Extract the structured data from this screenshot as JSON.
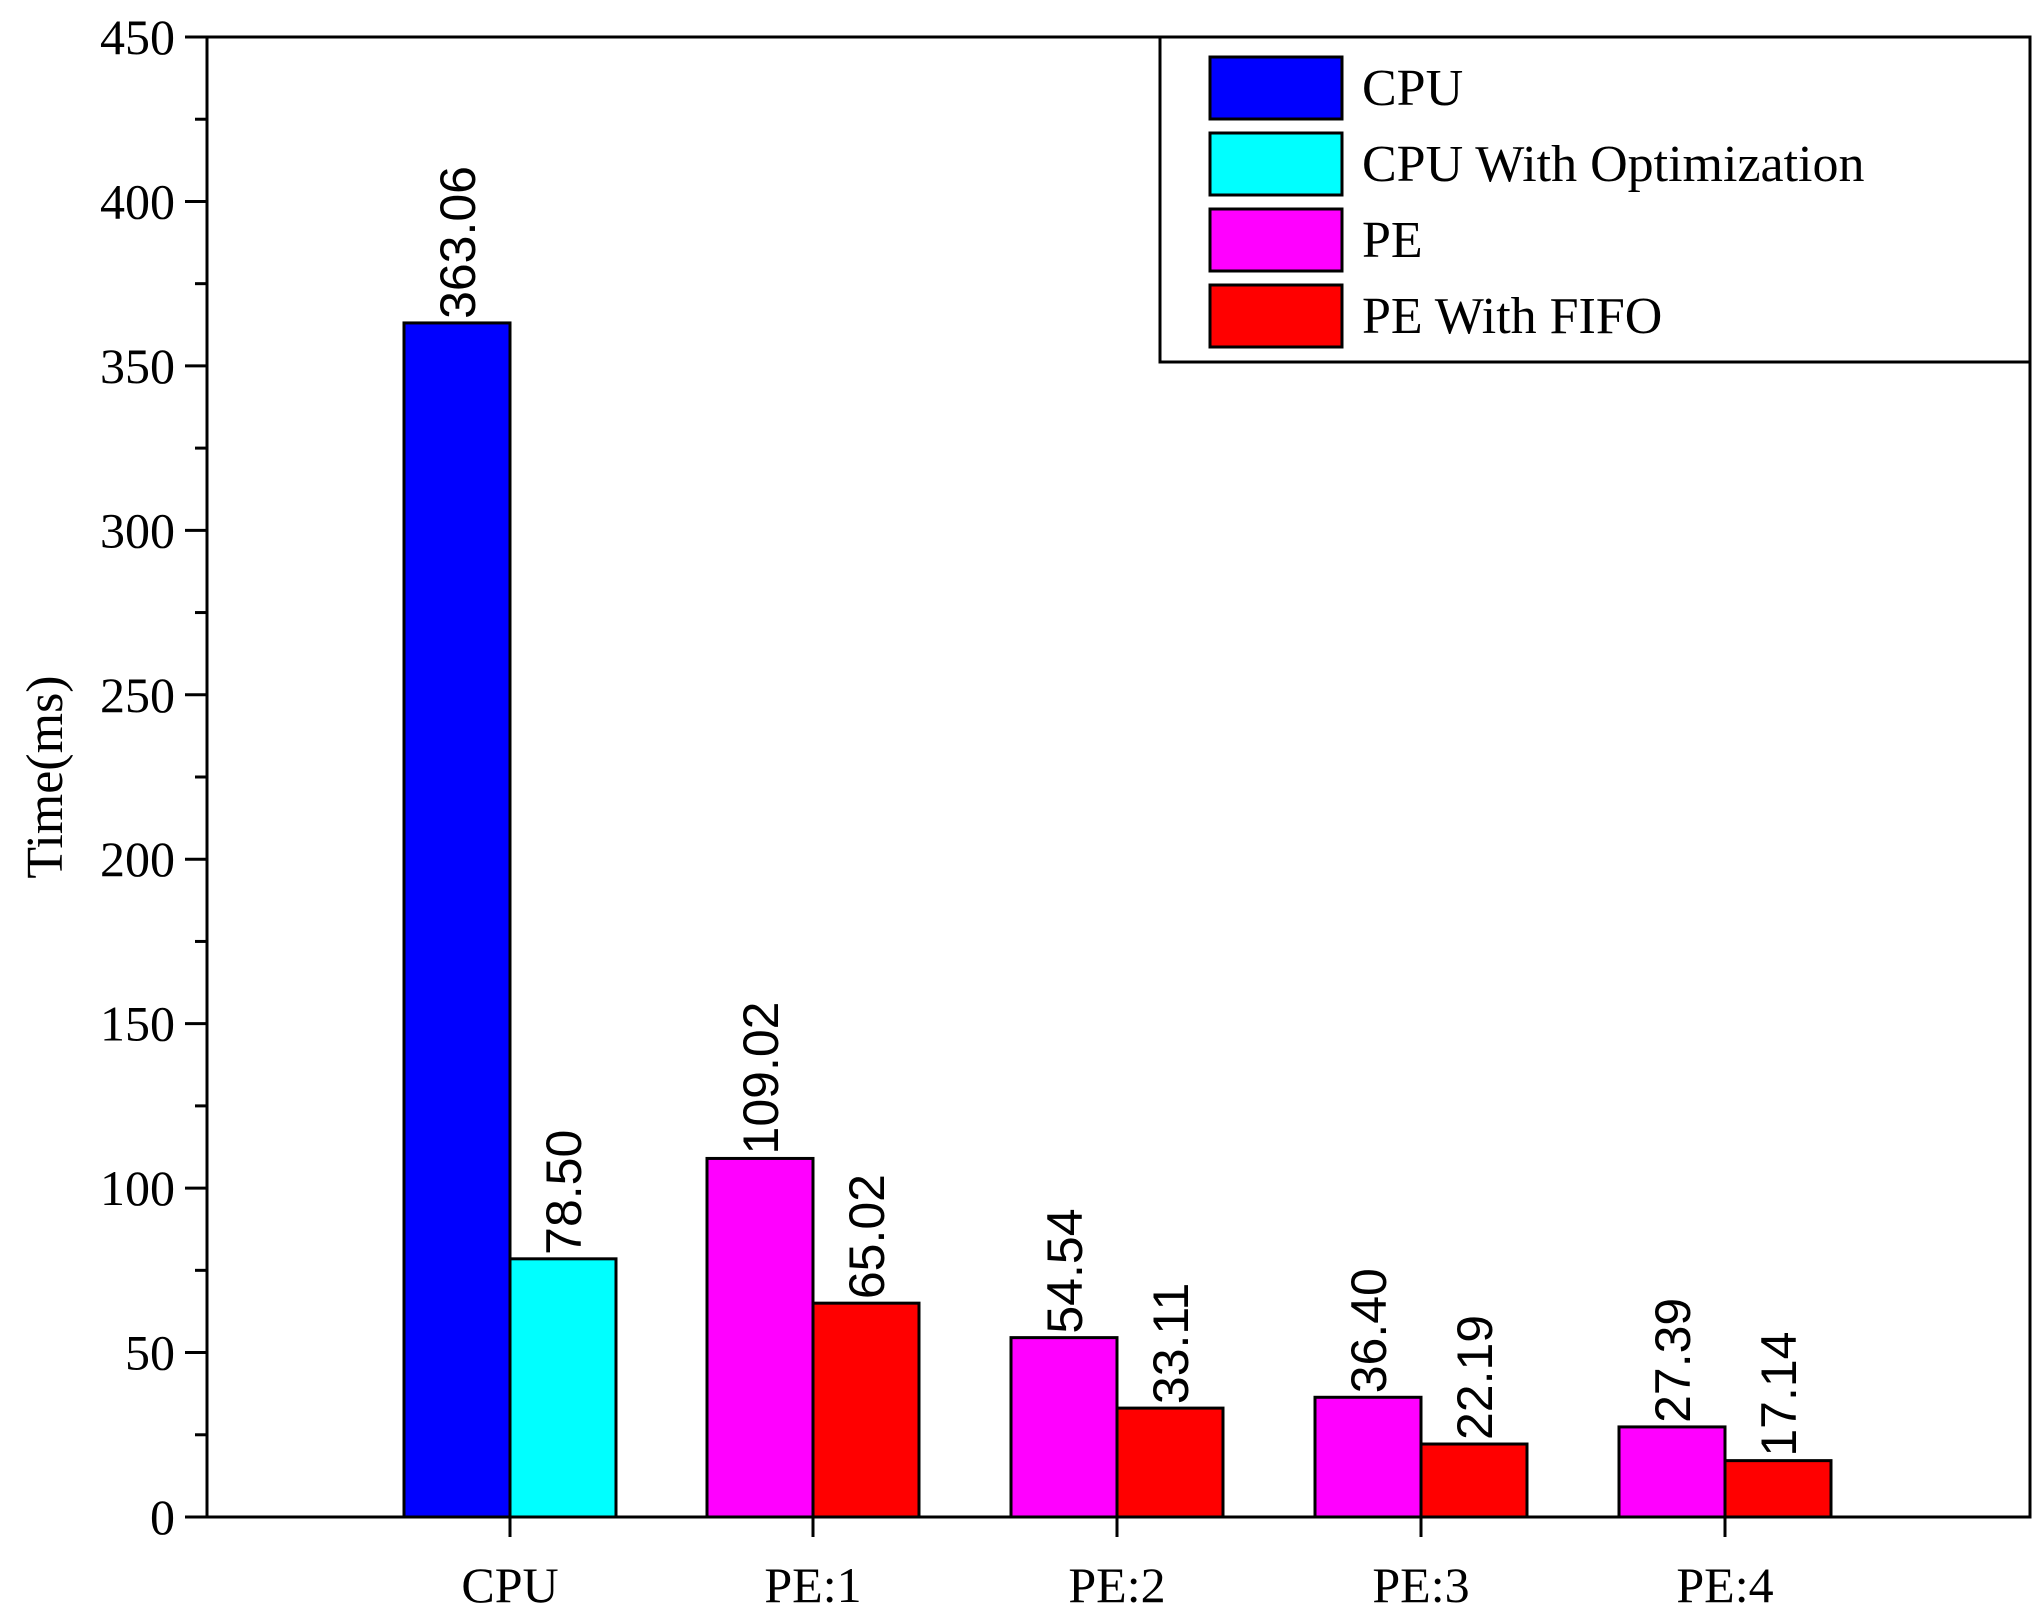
{
  "chart_data": {
    "type": "bar",
    "title": "",
    "xlabel": "",
    "ylabel": "Time(ms)",
    "ylim": [
      0,
      450
    ],
    "yticks": [
      "0",
      "50",
      "100",
      "150",
      "200",
      "250",
      "300",
      "350",
      "400",
      "450"
    ],
    "categories": [
      "CPU",
      "PE:1",
      "PE:2",
      "PE:3",
      "PE:4"
    ],
    "series": [
      {
        "name": "CPU",
        "color": "#0000ff",
        "values": [
          363.06,
          null,
          null,
          null,
          null
        ],
        "labels": [
          "363.06",
          null,
          null,
          null,
          null
        ]
      },
      {
        "name": "CPU With Optimization",
        "color": "#00ffff",
        "values": [
          78.5,
          null,
          null,
          null,
          null
        ],
        "labels": [
          "78.50",
          null,
          null,
          null,
          null
        ]
      },
      {
        "name": "PE",
        "color": "#ff00ff",
        "values": [
          null,
          109.02,
          54.54,
          36.4,
          27.39
        ],
        "labels": [
          null,
          "109.02",
          "54.54",
          "36.40",
          "27.39"
        ]
      },
      {
        "name": "PE With FIFO",
        "color": "#ff0000",
        "values": [
          null,
          65.02,
          33.11,
          22.19,
          17.14
        ],
        "labels": [
          null,
          "65.02",
          "33.11",
          "22.19",
          "17.14"
        ]
      }
    ],
    "grid": false,
    "legend_position": "top-right"
  }
}
